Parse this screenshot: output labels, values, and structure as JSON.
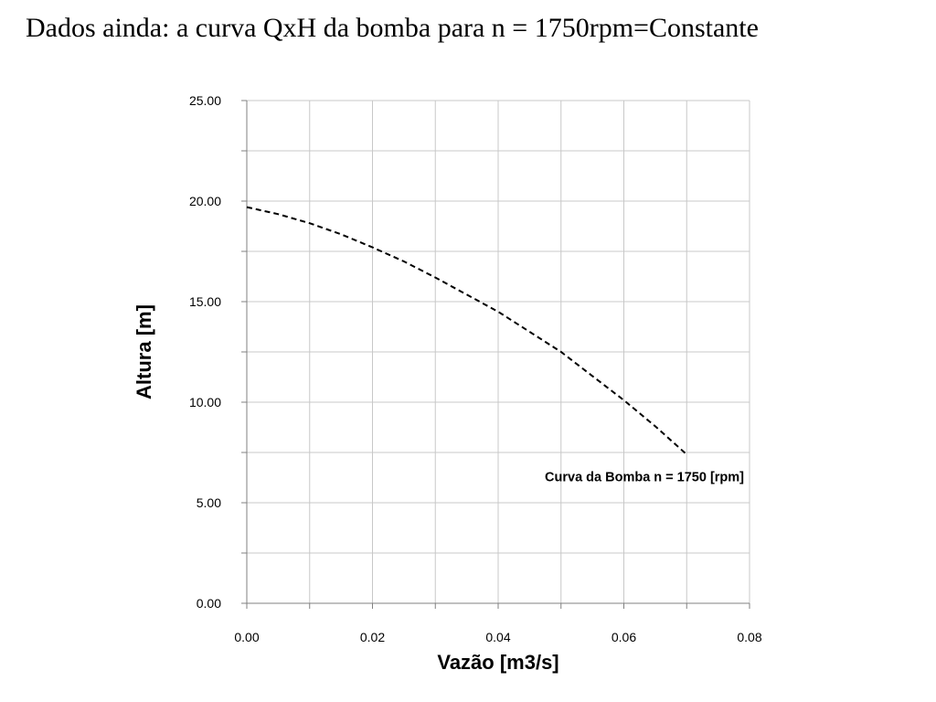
{
  "slide": {
    "title": "Dados ainda: a curva QxH da bomba para n = 1750rpm=Constante"
  },
  "chart_data": {
    "type": "line",
    "xlabel": "Vazão [m3/s]",
    "ylabel": "Altura [m]",
    "xlim": [
      0,
      0.08
    ],
    "ylim": [
      0,
      25
    ],
    "x_ticks": [
      "0.00",
      "0.02",
      "0.04",
      "0.06",
      "0.08"
    ],
    "y_ticks": [
      "0.00",
      "5.00",
      "10.00",
      "15.00",
      "20.00",
      "25.00"
    ],
    "x_minor_step": 0.01,
    "y_minor_step": 2.5,
    "grid": true,
    "series": [
      {
        "name": "Curva da Bomba n = 1750 [rpm]",
        "style": "dashed",
        "color": "#000000",
        "x": [
          0.0,
          0.005,
          0.01,
          0.015,
          0.02,
          0.025,
          0.03,
          0.035,
          0.04,
          0.045,
          0.05,
          0.055,
          0.06,
          0.065,
          0.07
        ],
        "y": [
          19.7,
          19.35,
          18.9,
          18.35,
          17.7,
          17.0,
          16.2,
          15.35,
          14.5,
          13.5,
          12.5,
          11.3,
          10.1,
          8.8,
          7.4
        ]
      }
    ],
    "annotations": [
      {
        "text": "Curva da Bomba n = 1750 [rpm]",
        "x": 0.08,
        "y": 6.3,
        "anchor": "end"
      }
    ],
    "colors": {
      "grid": "#c8c8c8",
      "axis": "#808080",
      "line": "#000000"
    }
  }
}
